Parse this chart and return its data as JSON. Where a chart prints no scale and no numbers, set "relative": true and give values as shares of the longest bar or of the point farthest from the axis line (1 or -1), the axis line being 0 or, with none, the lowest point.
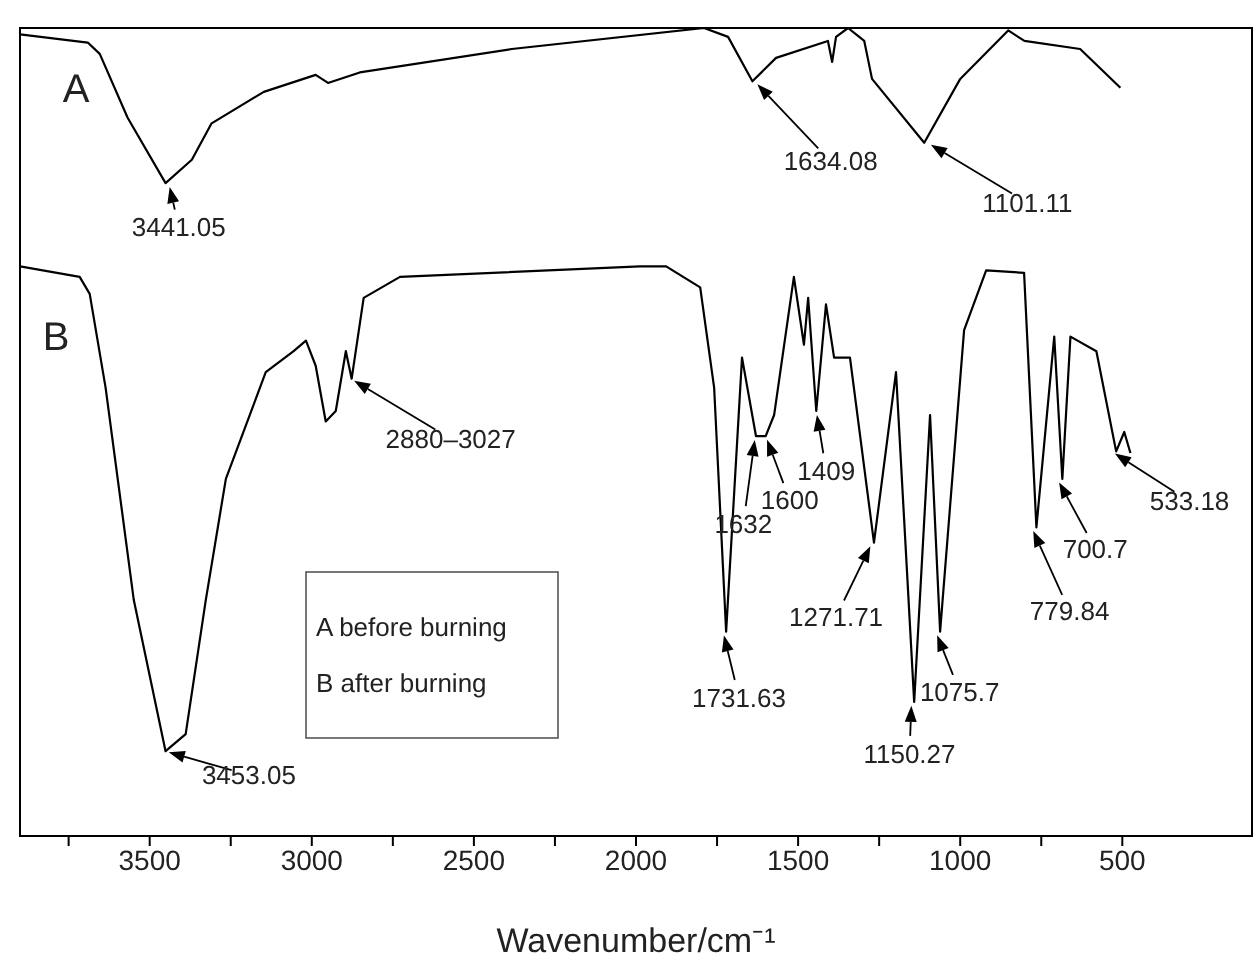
{
  "chart_data": {
    "type": "line",
    "relative": true,
    "xlabel": "Wavenumber/cm⁻¹",
    "xlim": [
      3900,
      100
    ],
    "xticks": [
      {
        "value": 3750,
        "label": null
      },
      3500,
      {
        "value": 3250,
        "label": null
      },
      3000,
      {
        "value": 2750,
        "label": null
      },
      2500,
      {
        "value": 2250,
        "label": null
      },
      2000,
      {
        "value": 1750,
        "label": null
      },
      1500,
      {
        "value": 1250,
        "label": null
      },
      1000,
      {
        "value": 750,
        "label": null
      },
      500
    ],
    "marker": "none",
    "line_style": "solid",
    "grid": false,
    "legend": false,
    "series": [
      {
        "name": "A",
        "color": "#000000",
        "x": [
          3900,
          3691,
          3654,
          3568,
          3451,
          3370,
          3309,
          3148,
          2988,
          2950,
          2852,
          2383,
          1790,
          1716,
          1641,
          1568,
          1408,
          1395,
          1383,
          1346,
          1296,
          1272,
          1111,
          1000,
          852,
          802,
          630,
          506
        ],
        "values": [
          0.992,
          0.982,
          0.968,
          0.889,
          0.808,
          0.837,
          0.882,
          0.921,
          0.942,
          0.932,
          0.945,
          0.974,
          1.0,
          0.989,
          0.934,
          0.963,
          0.984,
          0.958,
          0.989,
          1.0,
          0.984,
          0.937,
          0.858,
          0.937,
          0.997,
          0.984,
          0.974,
          0.926
        ]
      },
      {
        "name": "B",
        "color": "#000000",
        "x": [
          3900,
          3716,
          3685,
          3636,
          3549,
          3451,
          3389,
          3327,
          3265,
          3142,
          3056,
          3018,
          2988,
          2957,
          2926,
          2895,
          2877,
          2840,
          2728,
          1988,
          1907,
          1802,
          1759,
          1722,
          1673,
          1630,
          1600,
          1574,
          1513,
          1482,
          1469,
          1444,
          1414,
          1389,
          1340,
          1266,
          1198,
          1142,
          1093,
          1062,
          988,
          920,
          803,
          765,
          710,
          685,
          660,
          580,
          519,
          494,
          475
        ],
        "values": [
          0.705,
          0.692,
          0.671,
          0.555,
          0.292,
          0.105,
          0.126,
          0.292,
          0.442,
          0.574,
          0.6,
          0.613,
          0.582,
          0.513,
          0.526,
          0.6,
          0.566,
          0.666,
          0.692,
          0.705,
          0.705,
          0.679,
          0.555,
          0.253,
          0.592,
          0.495,
          0.495,
          0.521,
          0.692,
          0.608,
          0.666,
          0.526,
          0.658,
          0.592,
          0.592,
          0.363,
          0.574,
          0.166,
          0.521,
          0.253,
          0.626,
          0.7,
          0.697,
          0.382,
          0.618,
          0.442,
          0.618,
          0.6,
          0.476,
          0.5,
          0.474
        ]
      }
    ],
    "annotations": [
      {
        "text": "3441.05",
        "x": 3441.05,
        "y": 0.808
      },
      {
        "text": "1634.08",
        "x": 1634.08,
        "y": 0.934
      },
      {
        "text": "1101.11",
        "x": 1101.11,
        "y": 0.858
      },
      {
        "text": "3453.05",
        "x": 3453.05,
        "y": 0.105
      },
      {
        "text": "2880–3027",
        "x": 2880,
        "y": 0.566
      },
      {
        "text": "1731.63",
        "x": 1731.63,
        "y": 0.253
      },
      {
        "text": "1632",
        "x": 1632,
        "y": 0.495
      },
      {
        "text": "1600",
        "x": 1600,
        "y": 0.495
      },
      {
        "text": "1409",
        "x": 1444,
        "y": 0.526
      },
      {
        "text": "1271.71",
        "x": 1271.71,
        "y": 0.363
      },
      {
        "text": "1150.27",
        "x": 1150.27,
        "y": 0.166
      },
      {
        "text": "1075.7",
        "x": 1075.7,
        "y": 0.253
      },
      {
        "text": "779.84",
        "x": 779.84,
        "y": 0.382
      },
      {
        "text": "700.7",
        "x": 700.7,
        "y": 0.442
      },
      {
        "text": "533.18",
        "x": 533.18,
        "y": 0.476
      },
      "A before burning",
      "B after burning"
    ]
  }
}
